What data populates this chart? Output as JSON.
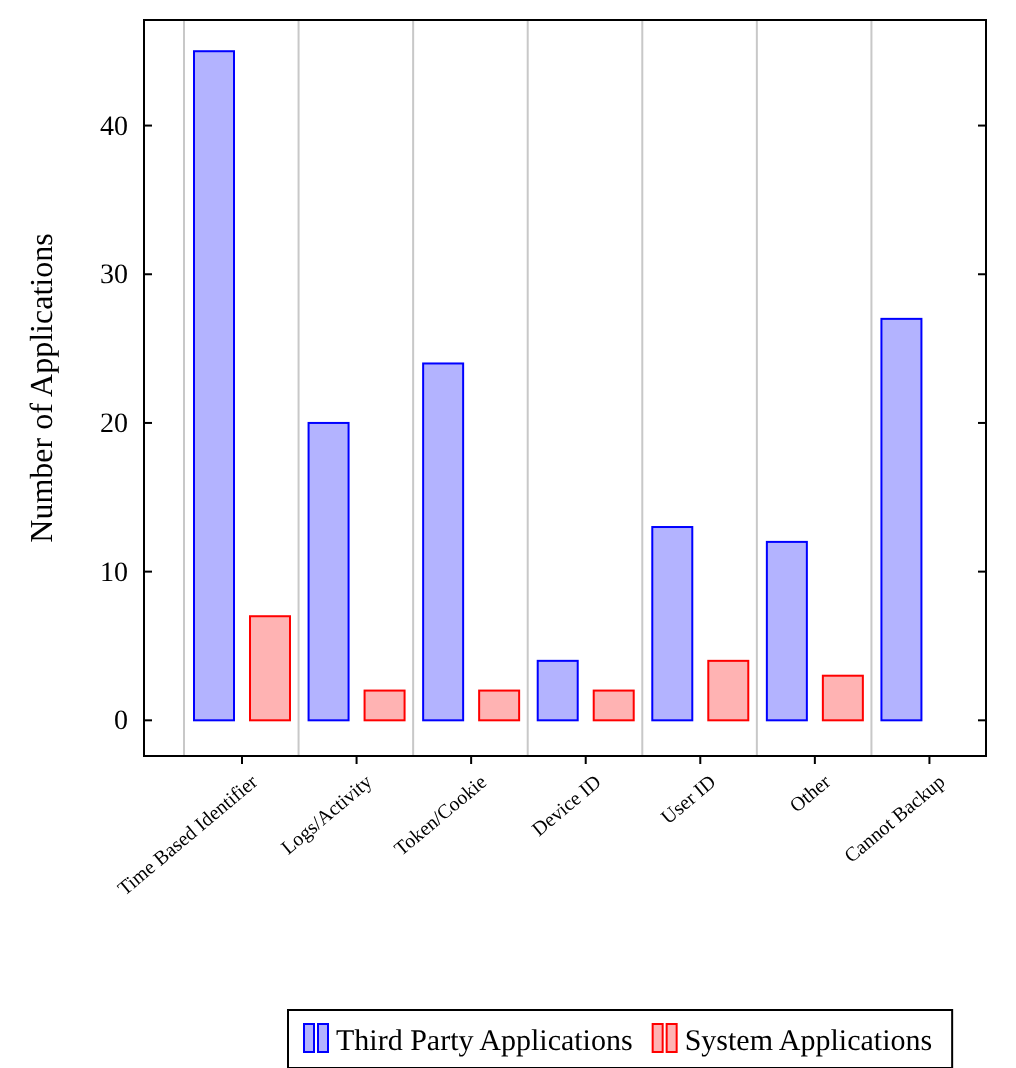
{
  "chart_data": {
    "type": "bar",
    "ylabel": "Number of Applications",
    "categories": [
      "Time Based Identifier",
      "Logs/Activity",
      "Token/Cookie",
      "Device ID",
      "User ID",
      "Other",
      "Cannot Backup"
    ],
    "series": [
      {
        "name": "Third Party Applications",
        "color": "#0000ff",
        "values": [
          45,
          20,
          24,
          4,
          13,
          12,
          27
        ]
      },
      {
        "name": "System Applications",
        "color": "#ff0000",
        "values": [
          7,
          2,
          2,
          2,
          4,
          3,
          0
        ]
      }
    ],
    "ylim": [
      -2.4,
      47.1
    ],
    "yticks": [
      0,
      10,
      20,
      30,
      40
    ],
    "grid": "x",
    "legend": "bottom"
  }
}
